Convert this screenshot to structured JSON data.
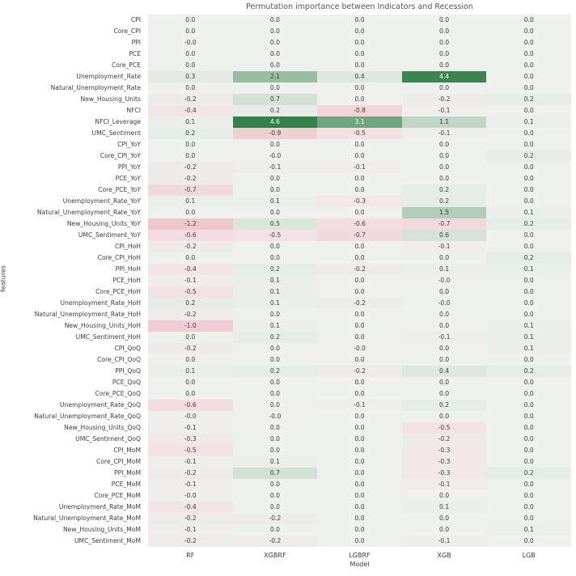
{
  "page": {
    "background": "#ffffff"
  },
  "chart_data": {
    "type": "heatmap",
    "title": "Permutation importance between Indicators and Recession",
    "xlabel": "Model",
    "ylabel": "features",
    "legend": "none",
    "grid": false,
    "vmin": -4.6,
    "vmax": 4.6,
    "white_text_threshold": 2.6,
    "colormap": {
      "center": "#eef1ee",
      "positive_end": "#34804a",
      "negative_light": "#f3e5e7",
      "negative_mid": "#f2d3d8",
      "negative_deep": "#eec4c9",
      "negative_end": "#c53b4e",
      "annot_dark": "#3b3b3b",
      "annot_light": "#ffffff"
    },
    "models": [
      "RF",
      "XGBRF",
      "LGBRF",
      "XGB",
      "LGB"
    ],
    "features": [
      "CPI",
      "Core_CPI",
      "PPI",
      "PCE",
      "Core_PCE",
      "Unemployment_Rate",
      "Natural_Unemployment_Rate",
      "New_Housing_Units",
      "NFCI",
      "NFCI_Leverage",
      "UMC_Sentiment",
      "CPI_YoY",
      "Core_CPI_YoY",
      "PPI_YoY",
      "PCE_YoY",
      "Core_PCE_YoY",
      "Unemployment_Rate_YoY",
      "Natural_Unemployment_Rate_YoY",
      "New_Housing_Units_YoY",
      "UMC_Sentiment_YoY",
      "CPI_HoH",
      "Core_CPI_HoH",
      "PPI_HoH",
      "PCE_HoH",
      "Core_PCE_HoH",
      "Unemployment_Rate_HoH",
      "Natural_Unemployment_Rate_HoH",
      "New_Housing_Units_HoH",
      "UMC_Sentiment_HoH",
      "CPI_QoQ",
      "Core_CPI_QoQ",
      "PPI_QoQ",
      "PCE_QoQ",
      "Core_PCE_QoQ",
      "Unemployment_Rate_QoQ",
      "Natural_Unemployment_Rate_QoQ",
      "New_Housing_Units_QoQ",
      "UMC_Sentiment_QoQ",
      "CPI_MoM",
      "Core_CPI_MoM",
      "PPI_MoM",
      "PCE_MoM",
      "Core_PCE_MoM",
      "Unemployment_Rate_MoM",
      "Natural_Unemployment_Rate_MoM",
      "New_Housing_Units_MoM",
      "UMC_Sentiment_MoM"
    ],
    "values": [
      [
        "0.0",
        "0.0",
        "0.0",
        "0.0",
        "0.0"
      ],
      [
        "0.0",
        "0.0",
        "0.0",
        "0.0",
        "0.0"
      ],
      [
        "-0.0",
        "0.0",
        "0.0",
        "0.0",
        "0.0"
      ],
      [
        "0.0",
        "0.0",
        "0.0",
        "0.0",
        "0.0"
      ],
      [
        "0.0",
        "0.0",
        "0.0",
        "0.0",
        "0.0"
      ],
      [
        "0.3",
        "2.1",
        "0.4",
        "4.4",
        "0.0"
      ],
      [
        "0.0",
        "0.0",
        "0.0",
        "0.0",
        "0.0"
      ],
      [
        "-0.2",
        "0.7",
        "0.0",
        "-0.2",
        "0.2"
      ],
      [
        "-0.4",
        "0.2",
        "-0.8",
        "-0.1",
        "0.0"
      ],
      [
        "0.1",
        "4.6",
        "3.1",
        "1.1",
        "0.1"
      ],
      [
        "0.2",
        "-0.9",
        "-0.5",
        "-0.1",
        "0.0"
      ],
      [
        "0.0",
        "0.0",
        "0.0",
        "0.0",
        "0.0"
      ],
      [
        "0.0",
        "-0.0",
        "0.0",
        "0.0",
        "0.2"
      ],
      [
        "-0.2",
        "-0.1",
        "-0.1",
        "0.0",
        "0.0"
      ],
      [
        "-0.2",
        "0.0",
        "0.0",
        "0.0",
        "0.0"
      ],
      [
        "-0.7",
        "0.0",
        "0.0",
        "0.2",
        "0.0"
      ],
      [
        "0.1",
        "0.1",
        "-0.3",
        "0.2",
        "0.0"
      ],
      [
        "0.0",
        "0.0",
        "0.0",
        "1.5",
        "0.1"
      ],
      [
        "-1.2",
        "0.5",
        "-0.6",
        "-0.7",
        "0.2"
      ],
      [
        "-0.6",
        "-0.5",
        "-0.7",
        "0.6",
        "0.0"
      ],
      [
        "-0.2",
        "0.0",
        "0.0",
        "-0.1",
        "0.0"
      ],
      [
        "0.0",
        "0.0",
        "0.0",
        "0.0",
        "0.2"
      ],
      [
        "-0.4",
        "0.2",
        "-0.2",
        "0.1",
        "0.1"
      ],
      [
        "-0.1",
        "0.1",
        "0.0",
        "-0.0",
        "0.0"
      ],
      [
        "-0.5",
        "0.1",
        "0.0",
        "0.0",
        "0.0"
      ],
      [
        "0.2",
        "0.1",
        "-0.2",
        "-0.0",
        "0.0"
      ],
      [
        "-0.2",
        "0.0",
        "0.0",
        "0.0",
        "0.0"
      ],
      [
        "-1.0",
        "0.1",
        "0.0",
        "0.0",
        "0.1"
      ],
      [
        "0.0",
        "0.2",
        "0.0",
        "-0.1",
        "0.1"
      ],
      [
        "-0.2",
        "0.0",
        "-0.0",
        "0.0",
        "0.1"
      ],
      [
        "0.0",
        "0.0",
        "0.0",
        "0.0",
        "0.0"
      ],
      [
        "0.1",
        "0.2",
        "-0.2",
        "0.4",
        "0.2"
      ],
      [
        "0.0",
        "0.0",
        "0.0",
        "0.0",
        "0.0"
      ],
      [
        "0.0",
        "0.0",
        "0.0",
        "0.0",
        "0.0"
      ],
      [
        "-0.6",
        "0.0",
        "-0.1",
        "0.2",
        "0.0"
      ],
      [
        "-0.0",
        "-0.0",
        "0.0",
        "0.0",
        "0.0"
      ],
      [
        "-0.1",
        "0.0",
        "0.0",
        "-0.5",
        "0.0"
      ],
      [
        "-0.3",
        "0.0",
        "0.0",
        "-0.2",
        "0.0"
      ],
      [
        "-0.5",
        "0.0",
        "0.0",
        "-0.3",
        "0.0"
      ],
      [
        "-0.1",
        "0.1",
        "0.0",
        "-0.3",
        "0.0"
      ],
      [
        "-0.2",
        "0.7",
        "0.0",
        "-0.3",
        "0.2"
      ],
      [
        "-0.1",
        "0.0",
        "0.0",
        "-0.1",
        "0.0"
      ],
      [
        "-0.0",
        "0.0",
        "0.0",
        "0.0",
        "0.0"
      ],
      [
        "-0.4",
        "0.0",
        "0.0",
        "0.1",
        "0.0"
      ],
      [
        "-0.2",
        "-0.2",
        "0.0",
        "0.0",
        "0.0"
      ],
      [
        "-0.1",
        "0.0",
        "0.0",
        "0.0",
        "0.1"
      ],
      [
        "-0.2",
        "-0.2",
        "0.0",
        "-0.1",
        "0.0"
      ]
    ]
  }
}
